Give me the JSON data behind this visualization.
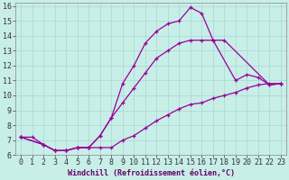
{
  "xlabel": "Windchill (Refroidissement éolien,°C)",
  "line_color": "#990099",
  "bg_color": "#c8eee8",
  "grid_color": "#a8d8d0",
  "xlim": [
    -0.5,
    23.5
  ],
  "ylim": [
    6,
    16.2
  ],
  "yticks": [
    6,
    7,
    8,
    9,
    10,
    11,
    12,
    13,
    14,
    15,
    16
  ],
  "xticks": [
    0,
    1,
    2,
    3,
    4,
    5,
    6,
    7,
    8,
    9,
    10,
    11,
    12,
    13,
    14,
    15,
    16,
    17,
    18,
    19,
    20,
    21,
    22,
    23
  ],
  "curve_a_x": [
    0,
    1,
    2,
    3,
    4,
    5,
    6,
    7,
    8,
    9,
    10,
    11,
    12,
    13,
    14,
    15,
    16,
    17,
    18,
    22,
    23
  ],
  "curve_a_y": [
    7.2,
    7.2,
    6.7,
    6.3,
    6.3,
    6.5,
    6.5,
    7.3,
    8.5,
    10.8,
    12.0,
    13.5,
    14.3,
    14.8,
    15.0,
    15.9,
    15.5,
    13.7,
    13.7,
    10.7,
    10.8
  ],
  "curve_b_x": [
    0,
    2,
    3,
    4,
    5,
    6,
    7,
    8,
    9,
    10,
    11,
    12,
    13,
    14,
    15,
    16,
    17,
    19,
    20,
    21,
    22,
    23
  ],
  "curve_b_y": [
    7.2,
    6.7,
    6.3,
    6.3,
    6.5,
    6.5,
    7.3,
    8.5,
    9.5,
    10.5,
    11.5,
    12.5,
    13.0,
    13.5,
    13.7,
    13.7,
    13.7,
    11.0,
    11.4,
    11.2,
    10.7,
    10.8
  ],
  "curve_c_x": [
    0,
    2,
    3,
    4,
    5,
    6,
    7,
    8,
    9,
    10,
    11,
    12,
    13,
    14,
    15,
    16,
    17,
    18,
    19,
    20,
    21,
    22,
    23
  ],
  "curve_c_y": [
    7.2,
    6.7,
    6.3,
    6.3,
    6.5,
    6.5,
    6.5,
    6.5,
    7.0,
    7.3,
    7.8,
    8.3,
    8.7,
    9.1,
    9.4,
    9.5,
    9.8,
    10.0,
    10.2,
    10.5,
    10.7,
    10.8,
    10.8
  ],
  "xlabel_color": "#660066",
  "xlabel_fontsize": 6,
  "tick_fontsize": 6,
  "linewidth": 0.9,
  "markersize": 3.5
}
